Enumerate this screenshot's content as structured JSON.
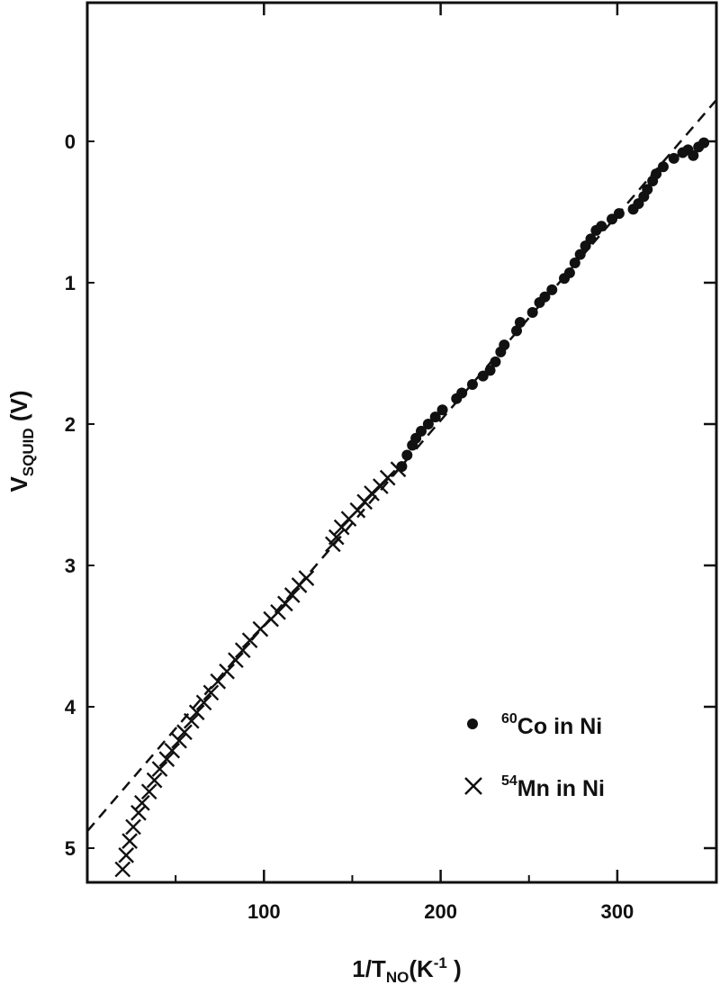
{
  "chart_data": {
    "type": "scatter",
    "xlabel": {
      "main": "1/T",
      "sub": "NO",
      "rest": "(K",
      "sup": "-1",
      "close": " )"
    },
    "ylabel": {
      "main": "V",
      "sub": "SQUID",
      "rest": " (V)"
    },
    "xlim": [
      0,
      360
    ],
    "ylim": [
      -1,
      5.2
    ],
    "y_inverted": true,
    "x_ticks": [
      100,
      200,
      300
    ],
    "x_minor_ticks": [
      50,
      150,
      250
    ],
    "y_ticks": [
      0,
      1,
      2,
      3,
      4,
      5
    ],
    "grid": false,
    "legend_position": "bottom-right",
    "series": [
      {
        "name": "Co in Ni",
        "isotope": "60",
        "marker": "filled-circle",
        "color": "#111111",
        "points": [
          [
            178,
            2.3
          ],
          [
            181,
            2.22
          ],
          [
            184,
            2.15
          ],
          [
            186,
            2.1
          ],
          [
            189,
            2.05
          ],
          [
            193,
            2.0
          ],
          [
            197,
            1.95
          ],
          [
            201,
            1.9
          ],
          [
            209,
            1.82
          ],
          [
            212,
            1.78
          ],
          [
            218,
            1.72
          ],
          [
            224,
            1.66
          ],
          [
            228,
            1.62
          ],
          [
            231,
            1.56
          ],
          [
            234,
            1.49
          ],
          [
            236,
            1.44
          ],
          [
            243,
            1.34
          ],
          [
            245,
            1.28
          ],
          [
            252,
            1.21
          ],
          [
            256,
            1.14
          ],
          [
            259,
            1.1
          ],
          [
            263,
            1.05
          ],
          [
            270,
            0.97
          ],
          [
            273,
            0.93
          ],
          [
            276,
            0.86
          ],
          [
            279,
            0.8
          ],
          [
            282,
            0.74
          ],
          [
            285,
            0.69
          ],
          [
            288,
            0.63
          ],
          [
            291,
            0.6
          ],
          [
            297,
            0.55
          ],
          [
            301,
            0.51
          ],
          [
            309,
            0.48
          ],
          [
            312,
            0.44
          ],
          [
            315,
            0.39
          ],
          [
            317,
            0.34
          ],
          [
            320,
            0.28
          ],
          [
            322,
            0.23
          ],
          [
            326,
            0.18
          ],
          [
            332,
            0.12
          ],
          [
            337,
            0.08
          ],
          [
            340,
            0.06
          ],
          [
            343,
            0.1
          ],
          [
            346,
            0.04
          ],
          [
            349,
            0.01
          ]
        ]
      },
      {
        "name": "Mn in Ni",
        "isotope": "54",
        "marker": "cross",
        "color": "#111111",
        "points": [
          [
            20,
            5.15
          ],
          [
            22,
            5.05
          ],
          [
            24,
            4.95
          ],
          [
            26,
            4.85
          ],
          [
            29,
            4.75
          ],
          [
            31,
            4.68
          ],
          [
            35,
            4.6
          ],
          [
            38,
            4.52
          ],
          [
            41,
            4.44
          ],
          [
            45,
            4.37
          ],
          [
            48,
            4.31
          ],
          [
            52,
            4.24
          ],
          [
            55,
            4.18
          ],
          [
            59,
            4.1
          ],
          [
            62,
            4.04
          ],
          [
            66,
            3.97
          ],
          [
            70,
            3.9
          ],
          [
            74,
            3.82
          ],
          [
            79,
            3.75
          ],
          [
            84,
            3.67
          ],
          [
            88,
            3.6
          ],
          [
            92,
            3.53
          ],
          [
            98,
            3.45
          ],
          [
            104,
            3.38
          ],
          [
            108,
            3.33
          ],
          [
            112,
            3.27
          ],
          [
            116,
            3.21
          ],
          [
            120,
            3.14
          ],
          [
            124,
            3.09
          ],
          [
            139,
            2.85
          ],
          [
            141,
            2.8
          ],
          [
            144,
            2.73
          ],
          [
            148,
            2.67
          ],
          [
            153,
            2.61
          ],
          [
            157,
            2.55
          ],
          [
            161,
            2.49
          ],
          [
            166,
            2.44
          ],
          [
            170,
            2.38
          ],
          [
            176,
            2.32
          ]
        ]
      }
    ],
    "fit_line": {
      "style": "dashed",
      "points": [
        [
          0,
          4.88
        ],
        [
          360,
          -0.35
        ]
      ]
    }
  }
}
